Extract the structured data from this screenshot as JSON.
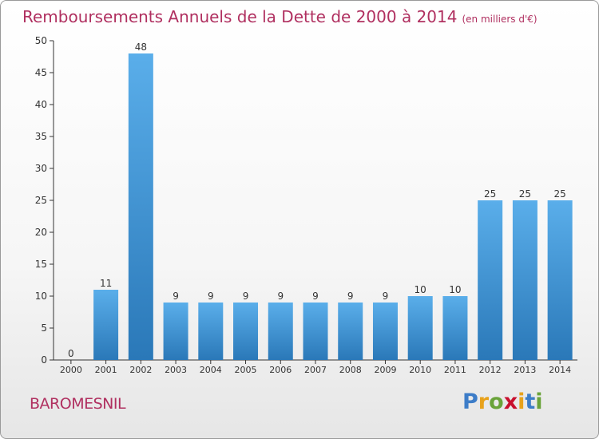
{
  "title": "Remboursements Annuels de la Dette de 2000 à 2014",
  "title_unit": "(en milliers d'€)",
  "location": "BAROMESNIL",
  "brand": {
    "letters": [
      "P",
      "r",
      "o",
      "x",
      "i",
      "t",
      "i"
    ],
    "colors": [
      "#3d7dc8",
      "#e8a21b",
      "#6aa33a",
      "#c8102e",
      "#e8a21b",
      "#3d7dc8",
      "#6aa33a"
    ]
  },
  "colors": {
    "title": "#b03060",
    "bar_light": "#5aaeea",
    "bar_dark": "#2a78b8",
    "axis": "#333333",
    "grid": "#cccccc"
  },
  "chart_data": {
    "type": "bar",
    "categories": [
      "2000",
      "2001",
      "2002",
      "2003",
      "2004",
      "2005",
      "2006",
      "2007",
      "2008",
      "2009",
      "2010",
      "2011",
      "2012",
      "2013",
      "2014"
    ],
    "values": [
      0,
      11,
      48,
      9,
      9,
      9,
      9,
      9,
      9,
      9,
      10,
      10,
      25,
      25,
      25
    ],
    "ylim": [
      0,
      50
    ],
    "yticks": [
      0,
      5,
      10,
      15,
      20,
      25,
      30,
      35,
      40,
      45,
      50
    ],
    "grid": false
  }
}
